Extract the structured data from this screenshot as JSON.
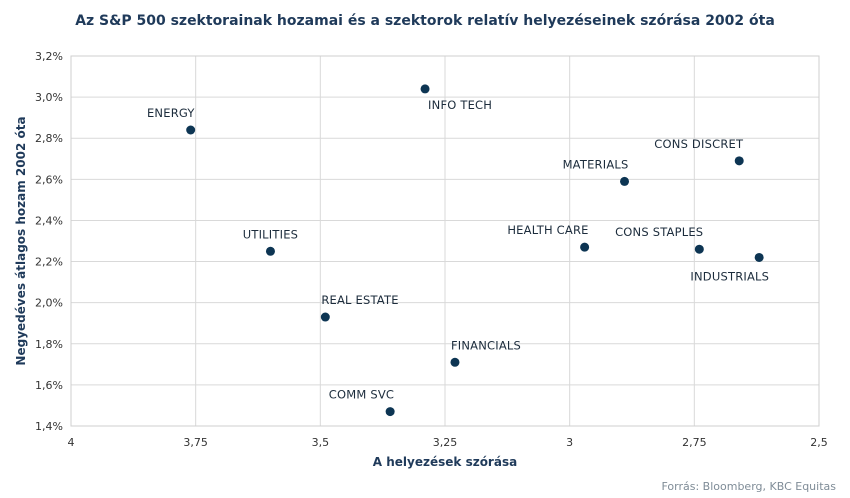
{
  "chart_data": {
    "type": "scatter",
    "title": "Az S&P 500 szektorainak hozamai és a szektorok relatív helyezéseinek szórása 2002 óta",
    "xlabel": "A helyezések szórása",
    "ylabel": "Negyedéves átlagos hozam 2002 óta",
    "x_reversed": true,
    "xlim": [
      4.0,
      2.5
    ],
    "ylim": [
      1.4,
      3.2
    ],
    "x_ticks": [
      4.0,
      3.75,
      3.5,
      3.25,
      3.0,
      2.75,
      2.5
    ],
    "x_tick_labels": [
      "4",
      "3,75",
      "3,5",
      "3,25",
      "3",
      "2,75",
      "2,5"
    ],
    "y_ticks": [
      1.4,
      1.6,
      1.8,
      2.0,
      2.2,
      2.4,
      2.6,
      2.8,
      3.0,
      3.2
    ],
    "y_tick_labels": [
      "1,4%",
      "1,6%",
      "1,8%",
      "2,0%",
      "2,2%",
      "2,4%",
      "2,6%",
      "2,8%",
      "3,0%",
      "3,2%"
    ],
    "grid": true,
    "marker_color": "#0d3553",
    "points": [
      {
        "label": "ENERGY",
        "x": 3.76,
        "y": 2.84,
        "label_pos": "above-left"
      },
      {
        "label": "INFO TECH",
        "x": 3.29,
        "y": 3.04,
        "label_pos": "below-right"
      },
      {
        "label": "UTILITIES",
        "x": 3.6,
        "y": 2.25,
        "label_pos": "above"
      },
      {
        "label": "REAL ESTATE",
        "x": 3.49,
        "y": 1.93,
        "label_pos": "above-right"
      },
      {
        "label": "COMM SVC",
        "x": 3.36,
        "y": 1.47,
        "label_pos": "above-left"
      },
      {
        "label": "FINANCIALS",
        "x": 3.23,
        "y": 1.71,
        "label_pos": "above-right"
      },
      {
        "label": "HEALTH CARE",
        "x": 2.97,
        "y": 2.27,
        "label_pos": "above-left"
      },
      {
        "label": "MATERIALS",
        "x": 2.89,
        "y": 2.59,
        "label_pos": "above-left"
      },
      {
        "label": "CONS DISCRET",
        "x": 2.66,
        "y": 2.69,
        "label_pos": "above-left"
      },
      {
        "label": "CONS STAPLES",
        "x": 2.74,
        "y": 2.26,
        "label_pos": "above-left"
      },
      {
        "label": "INDUSTRIALS",
        "x": 2.62,
        "y": 2.22,
        "label_pos": "below-left"
      }
    ]
  },
  "source": "Forrás: Bloomberg,  KBC Equitas"
}
